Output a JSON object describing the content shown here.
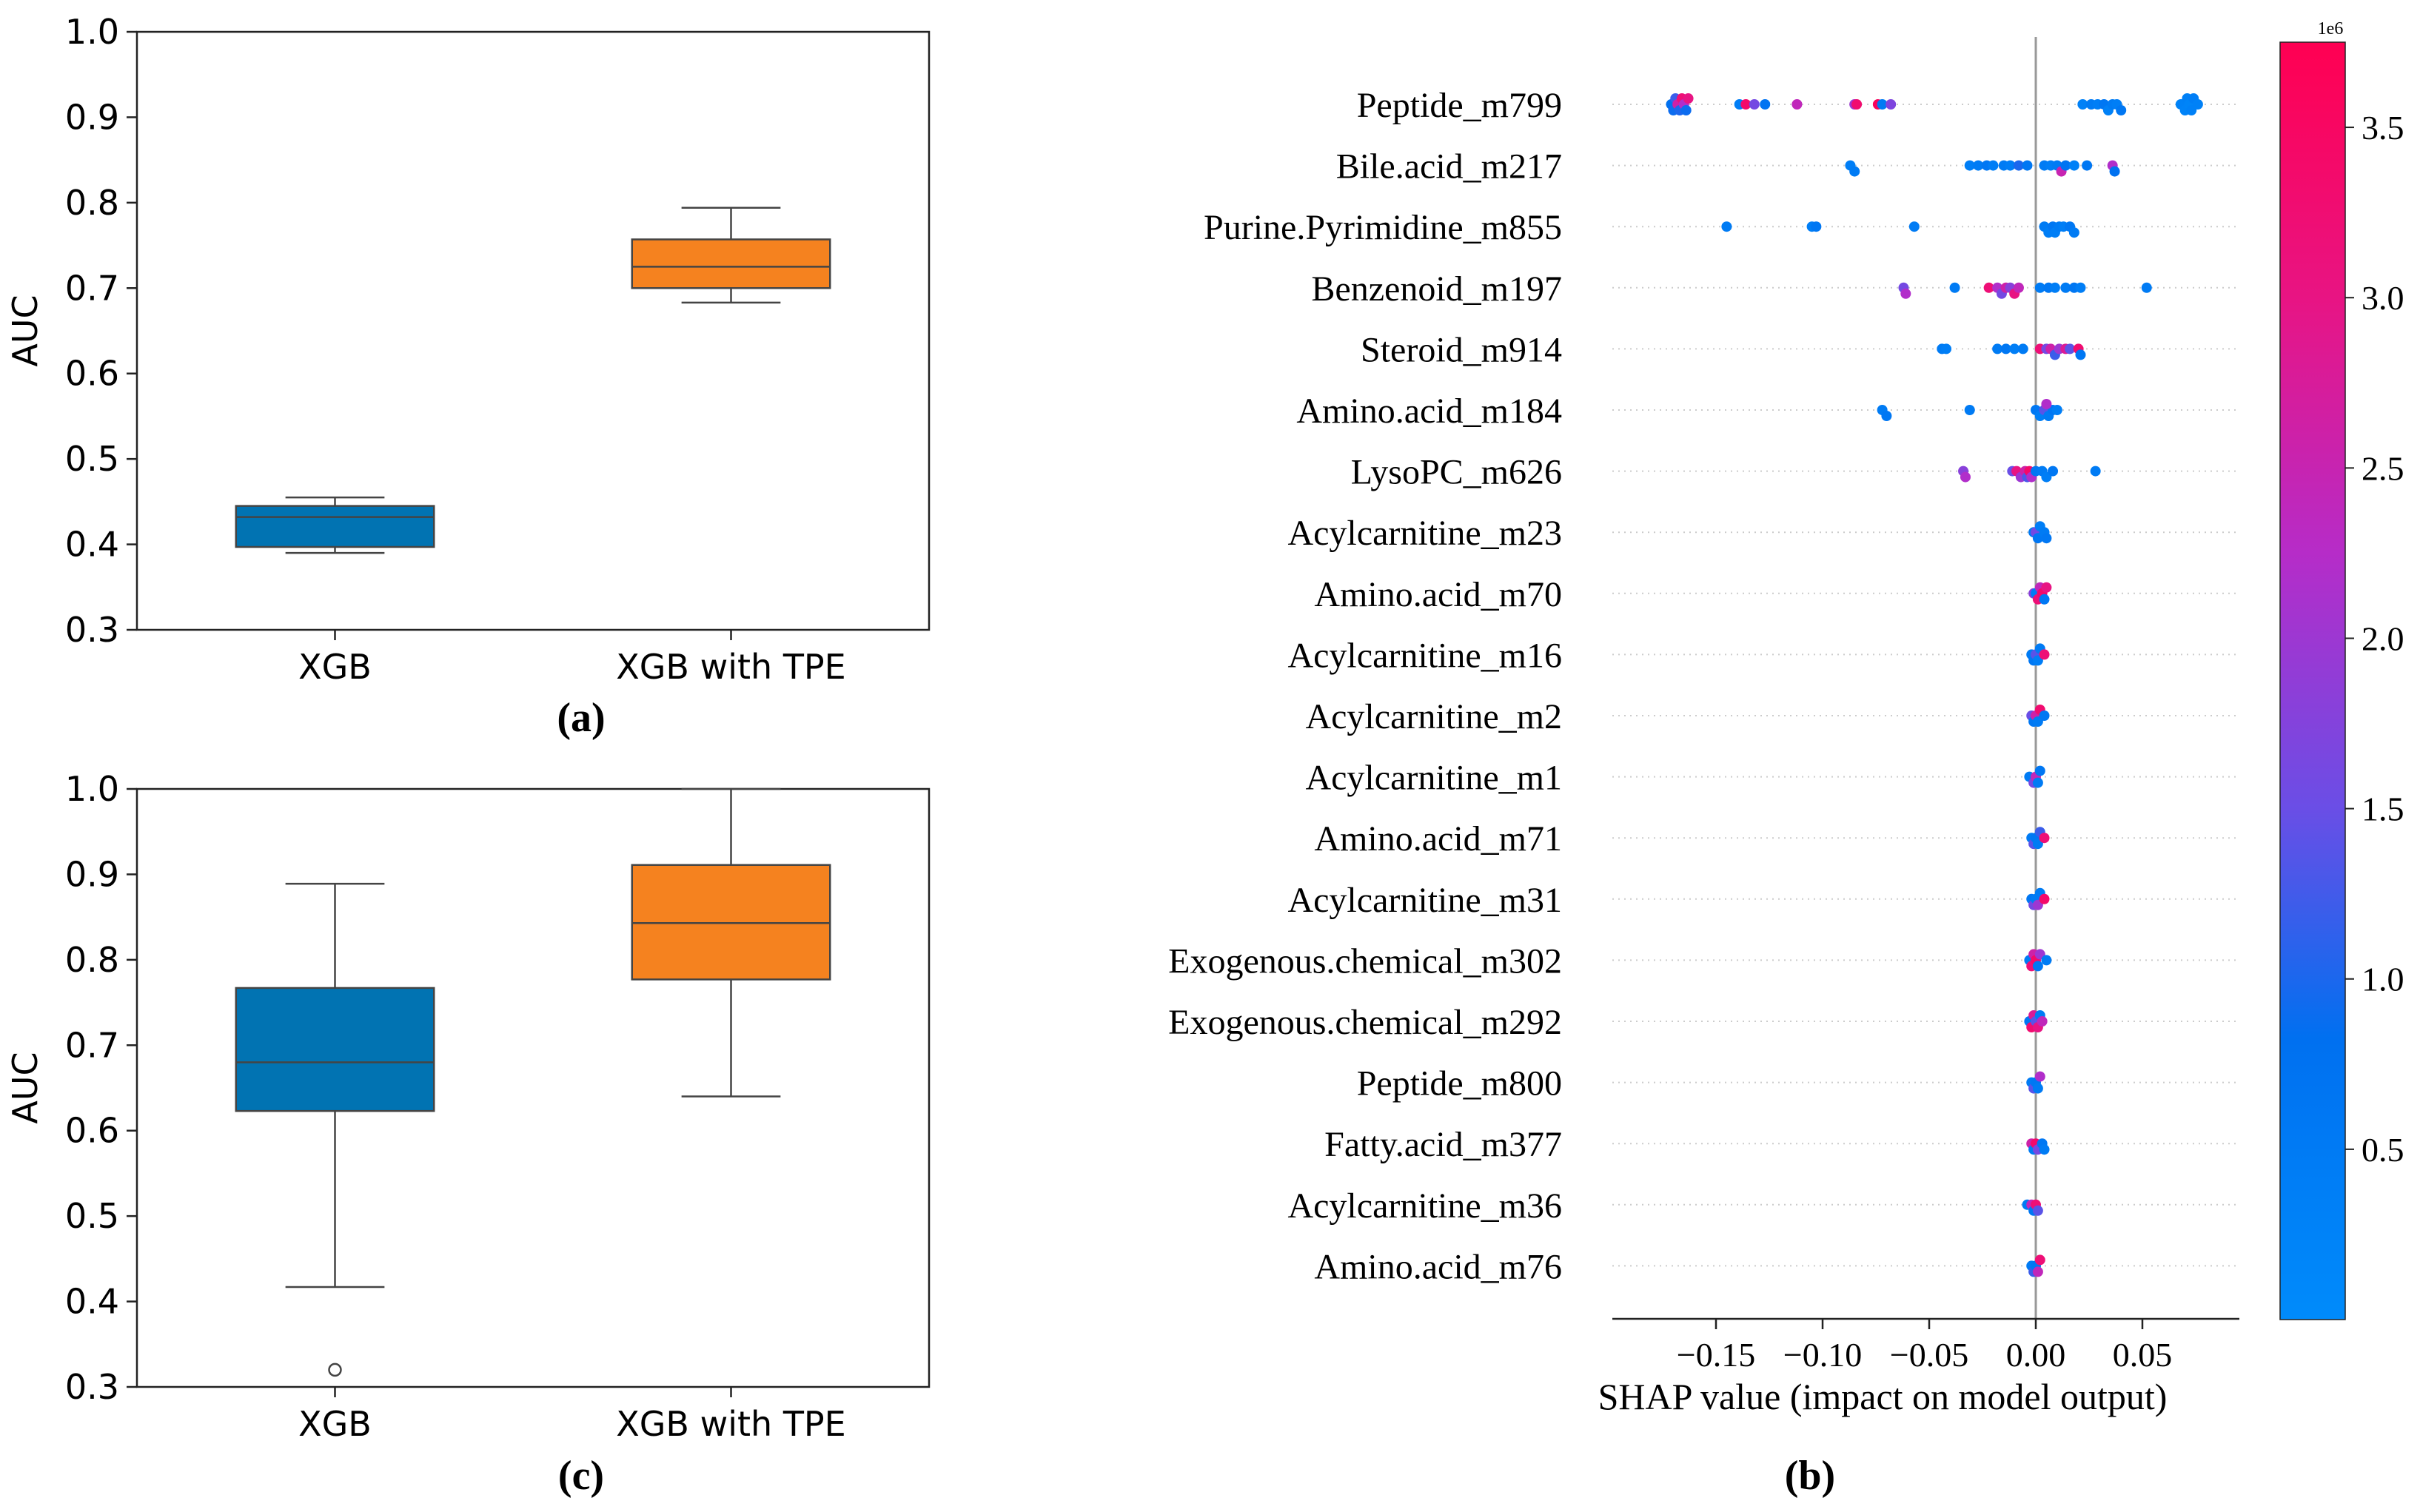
{
  "chart_data": [
    {
      "id": "a",
      "type": "box",
      "panel_label": "(a)",
      "ylabel": "AUC",
      "ylim": [
        0.3,
        1.0
      ],
      "yticks": [
        "0.3",
        "0.4",
        "0.5",
        "0.6",
        "0.7",
        "0.8",
        "0.9",
        "1.0"
      ],
      "categories": [
        "XGB",
        "XGB with TPE"
      ],
      "boxes": [
        {
          "name": "XGB",
          "color": "#0173b2",
          "whisker_low": 0.39,
          "q1": 0.397,
          "median": 0.432,
          "q3": 0.445,
          "whisker_high": 0.455,
          "outliers": []
        },
        {
          "name": "XGB with TPE",
          "color": "#f5821f",
          "whisker_low": 0.683,
          "q1": 0.7,
          "median": 0.725,
          "q3": 0.757,
          "whisker_high": 0.794,
          "outliers": []
        }
      ]
    },
    {
      "id": "c",
      "type": "box",
      "panel_label": "(c)",
      "ylabel": "AUC",
      "ylim": [
        0.3,
        1.0
      ],
      "yticks": [
        "0.3",
        "0.4",
        "0.5",
        "0.6",
        "0.7",
        "0.8",
        "0.9",
        "1.0"
      ],
      "categories": [
        "XGB",
        "XGB with TPE"
      ],
      "boxes": [
        {
          "name": "XGB",
          "color": "#0173b2",
          "whisker_low": 0.417,
          "q1": 0.623,
          "median": 0.68,
          "q3": 0.767,
          "whisker_high": 0.889,
          "outliers": [
            0.32
          ]
        },
        {
          "name": "XGB with TPE",
          "color": "#f5821f",
          "whisker_low": 0.64,
          "q1": 0.777,
          "median": 0.843,
          "q3": 0.911,
          "whisker_high": 1.0,
          "outliers": []
        }
      ]
    },
    {
      "id": "b",
      "type": "scatter",
      "subtype": "shap-beeswarm",
      "panel_label": "(b)",
      "xlabel": "SHAP value (impact on model output)",
      "xlim": [
        -0.19,
        0.09
      ],
      "xticks": [
        {
          "value": -0.15,
          "label": "−0.15"
        },
        {
          "value": -0.1,
          "label": "−0.10"
        },
        {
          "value": -0.05,
          "label": "−0.05"
        },
        {
          "value": 0.0,
          "label": "0.00"
        },
        {
          "value": 0.05,
          "label": "0.05"
        }
      ],
      "features": [
        {
          "name": "Peptide_m799",
          "points": [
            [
              -0.171,
              0.8
            ],
            [
              -0.17,
              0.9
            ],
            [
              -0.169,
              1.2
            ],
            [
              -0.168,
              2.6
            ],
            [
              -0.167,
              1.0
            ],
            [
              -0.166,
              3.2
            ],
            [
              -0.165,
              2.2
            ],
            [
              -0.164,
              0.9
            ],
            [
              -0.163,
              3.0
            ],
            [
              -0.139,
              0.4
            ],
            [
              -0.136,
              3.4
            ],
            [
              -0.132,
              1.6
            ],
            [
              -0.127,
              0.7
            ],
            [
              -0.112,
              2.4
            ],
            [
              -0.085,
              2.0
            ],
            [
              -0.084,
              3.3
            ],
            [
              -0.074,
              3.6
            ],
            [
              -0.072,
              0.5
            ],
            [
              -0.068,
              1.7
            ],
            [
              0.022,
              0.3
            ],
            [
              0.026,
              0.5
            ],
            [
              0.029,
              0.4
            ],
            [
              0.032,
              0.6
            ],
            [
              0.034,
              0.3
            ],
            [
              0.036,
              0.5
            ],
            [
              0.038,
              0.4
            ],
            [
              0.04,
              0.6
            ],
            [
              0.068,
              0.2
            ],
            [
              0.069,
              0.3
            ],
            [
              0.07,
              0.25
            ],
            [
              0.071,
              0.35
            ],
            [
              0.072,
              0.2
            ],
            [
              0.073,
              0.3
            ],
            [
              0.074,
              0.4
            ],
            [
              0.076,
              0.3
            ]
          ]
        },
        {
          "name": "Bile.acid_m217",
          "points": [
            [
              -0.087,
              0.4
            ],
            [
              -0.085,
              0.5
            ],
            [
              -0.031,
              0.4
            ],
            [
              -0.027,
              0.5
            ],
            [
              -0.023,
              0.6
            ],
            [
              -0.02,
              0.4
            ],
            [
              -0.015,
              0.5
            ],
            [
              -0.012,
              0.4
            ],
            [
              -0.008,
              1.0
            ],
            [
              -0.004,
              0.6
            ],
            [
              0.004,
              0.5
            ],
            [
              0.007,
              0.4
            ],
            [
              0.01,
              0.5
            ],
            [
              0.012,
              2.5
            ],
            [
              0.014,
              0.7
            ],
            [
              0.018,
              0.3
            ],
            [
              0.024,
              0.6
            ],
            [
              0.036,
              2.2
            ],
            [
              0.037,
              0.8
            ]
          ]
        },
        {
          "name": "Purine.Pyrimidine_m855",
          "points": [
            [
              -0.145,
              0.5
            ],
            [
              -0.105,
              0.4
            ],
            [
              -0.103,
              0.6
            ],
            [
              -0.057,
              0.5
            ],
            [
              0.004,
              0.5
            ],
            [
              0.006,
              0.4
            ],
            [
              0.008,
              0.6
            ],
            [
              0.009,
              0.4
            ],
            [
              0.011,
              0.5
            ],
            [
              0.013,
              0.4
            ],
            [
              0.016,
              0.6
            ],
            [
              0.018,
              0.5
            ]
          ]
        },
        {
          "name": "Benzenoid_m197",
          "points": [
            [
              -0.062,
              1.6
            ],
            [
              -0.061,
              2.2
            ],
            [
              -0.038,
              0.5
            ],
            [
              -0.022,
              3.2
            ],
            [
              -0.018,
              2.2
            ],
            [
              -0.016,
              1.6
            ],
            [
              -0.014,
              2.6
            ],
            [
              -0.012,
              1.8
            ],
            [
              -0.01,
              3.0
            ],
            [
              -0.008,
              2.4
            ],
            [
              0.002,
              0.5
            ],
            [
              0.006,
              0.6
            ],
            [
              0.009,
              0.4
            ],
            [
              0.014,
              0.5
            ],
            [
              0.018,
              0.6
            ],
            [
              0.021,
              0.4
            ],
            [
              0.052,
              0.5
            ]
          ]
        },
        {
          "name": "Steroid_m914",
          "points": [
            [
              -0.044,
              0.5
            ],
            [
              -0.042,
              0.4
            ],
            [
              -0.018,
              0.5
            ],
            [
              -0.014,
              0.6
            ],
            [
              -0.01,
              0.4
            ],
            [
              -0.006,
              0.5
            ],
            [
              0.002,
              3.2
            ],
            [
              0.005,
              1.6
            ],
            [
              0.007,
              2.6
            ],
            [
              0.009,
              1.2
            ],
            [
              0.011,
              2.0
            ],
            [
              0.014,
              2.8
            ],
            [
              0.016,
              1.4
            ],
            [
              0.02,
              3.3
            ],
            [
              0.021,
              0.6
            ]
          ]
        },
        {
          "name": "Amino.acid_m184",
          "points": [
            [
              -0.072,
              0.5
            ],
            [
              -0.07,
              0.6
            ],
            [
              -0.031,
              0.5
            ],
            [
              0.0,
              0.6
            ],
            [
              0.002,
              0.4
            ],
            [
              0.004,
              1.4
            ],
            [
              0.006,
              0.5
            ],
            [
              0.008,
              0.6
            ],
            [
              0.01,
              0.4
            ],
            [
              0.005,
              2.2
            ]
          ]
        },
        {
          "name": "LysoPC_m626",
          "points": [
            [
              -0.034,
              1.8
            ],
            [
              -0.033,
              2.2
            ],
            [
              -0.011,
              1.5
            ],
            [
              -0.009,
              3.0
            ],
            [
              -0.007,
              2.0
            ],
            [
              -0.005,
              2.6
            ],
            [
              -0.004,
              1.3
            ],
            [
              -0.003,
              3.4
            ],
            [
              -0.002,
              2.2
            ],
            [
              0.0,
              0.6
            ],
            [
              0.003,
              0.5
            ],
            [
              0.005,
              0.4
            ],
            [
              0.008,
              0.6
            ],
            [
              0.028,
              0.5
            ]
          ]
        },
        {
          "name": "Acylcarnitine_m23",
          "points": [
            [
              -0.001,
              0.5
            ],
            [
              0.0,
              1.6
            ],
            [
              0.001,
              0.6
            ],
            [
              0.002,
              0.4
            ],
            [
              0.004,
              0.5
            ],
            [
              0.005,
              0.6
            ]
          ]
        },
        {
          "name": "Amino.acid_m70",
          "points": [
            [
              -0.001,
              1.8
            ],
            [
              0.0,
              0.5
            ],
            [
              0.001,
              3.2
            ],
            [
              0.002,
              2.4
            ],
            [
              0.003,
              3.4
            ],
            [
              0.004,
              0.6
            ],
            [
              0.005,
              3.0
            ]
          ]
        },
        {
          "name": "Acylcarnitine_m16",
          "points": [
            [
              -0.002,
              0.5
            ],
            [
              -0.001,
              0.6
            ],
            [
              0.0,
              1.4
            ],
            [
              0.001,
              0.4
            ],
            [
              0.002,
              0.5
            ],
            [
              0.004,
              3.2
            ]
          ]
        },
        {
          "name": "Acylcarnitine_m2",
          "points": [
            [
              -0.002,
              1.5
            ],
            [
              -0.001,
              0.6
            ],
            [
              0.0,
              2.6
            ],
            [
              0.001,
              0.5
            ],
            [
              0.002,
              3.3
            ],
            [
              0.004,
              0.6
            ]
          ]
        },
        {
          "name": "Acylcarnitine_m1",
          "points": [
            [
              -0.003,
              0.5
            ],
            [
              -0.001,
              1.6
            ],
            [
              0.0,
              2.4
            ],
            [
              0.001,
              0.5
            ],
            [
              0.002,
              0.6
            ]
          ]
        },
        {
          "name": "Amino.acid_m71",
          "points": [
            [
              -0.002,
              0.5
            ],
            [
              -0.001,
              1.4
            ],
            [
              0.0,
              0.6
            ],
            [
              0.001,
              0.5
            ],
            [
              0.002,
              1.2
            ],
            [
              0.004,
              3.2
            ]
          ]
        },
        {
          "name": "Acylcarnitine_m31",
          "points": [
            [
              -0.002,
              0.6
            ],
            [
              -0.001,
              1.6
            ],
            [
              0.0,
              0.5
            ],
            [
              0.001,
              2.0
            ],
            [
              0.002,
              0.5
            ],
            [
              0.004,
              3.4
            ]
          ]
        },
        {
          "name": "Exogenous.chemical_m302",
          "points": [
            [
              -0.003,
              0.5
            ],
            [
              -0.002,
              3.2
            ],
            [
              -0.001,
              2.6
            ],
            [
              0.0,
              3.4
            ],
            [
              0.001,
              0.6
            ],
            [
              0.002,
              2.0
            ],
            [
              0.005,
              0.5
            ]
          ]
        },
        {
          "name": "Exogenous.chemical_m292",
          "points": [
            [
              -0.003,
              0.6
            ],
            [
              -0.002,
              3.3
            ],
            [
              -0.001,
              2.8
            ],
            [
              0.0,
              1.4
            ],
            [
              0.001,
              3.0
            ],
            [
              0.002,
              0.5
            ],
            [
              0.003,
              2.4
            ]
          ]
        },
        {
          "name": "Peptide_m800",
          "points": [
            [
              -0.002,
              0.5
            ],
            [
              -0.001,
              1.4
            ],
            [
              0.0,
              0.6
            ],
            [
              0.001,
              0.5
            ],
            [
              0.002,
              2.2
            ]
          ]
        },
        {
          "name": "Fatty.acid_m377",
          "points": [
            [
              -0.002,
              2.6
            ],
            [
              -0.001,
              0.5
            ],
            [
              0.0,
              3.4
            ],
            [
              0.001,
              1.6
            ],
            [
              0.003,
              0.6
            ],
            [
              0.004,
              0.5
            ]
          ]
        },
        {
          "name": "Acylcarnitine_m36",
          "points": [
            [
              -0.004,
              0.5
            ],
            [
              -0.002,
              2.4
            ],
            [
              -0.001,
              0.6
            ],
            [
              0.0,
              3.2
            ],
            [
              0.001,
              1.4
            ]
          ]
        },
        {
          "name": "Amino.acid_m76",
          "points": [
            [
              -0.002,
              0.5
            ],
            [
              -0.001,
              1.2
            ],
            [
              0.0,
              0.6
            ],
            [
              0.001,
              2.4
            ],
            [
              0.002,
              3.2
            ]
          ]
        }
      ],
      "colorbar": {
        "ticks": [
          "0.5",
          "1.0",
          "1.5",
          "2.0",
          "2.5",
          "3.0",
          "3.5"
        ],
        "tick_values": [
          0.5,
          1.0,
          1.5,
          2.0,
          2.5,
          3.0,
          3.5
        ],
        "range": [
          0.0,
          3.75
        ],
        "multiplier": "1e6",
        "low_color": "#008bfb",
        "high_color": "#ff0052"
      }
    }
  ]
}
